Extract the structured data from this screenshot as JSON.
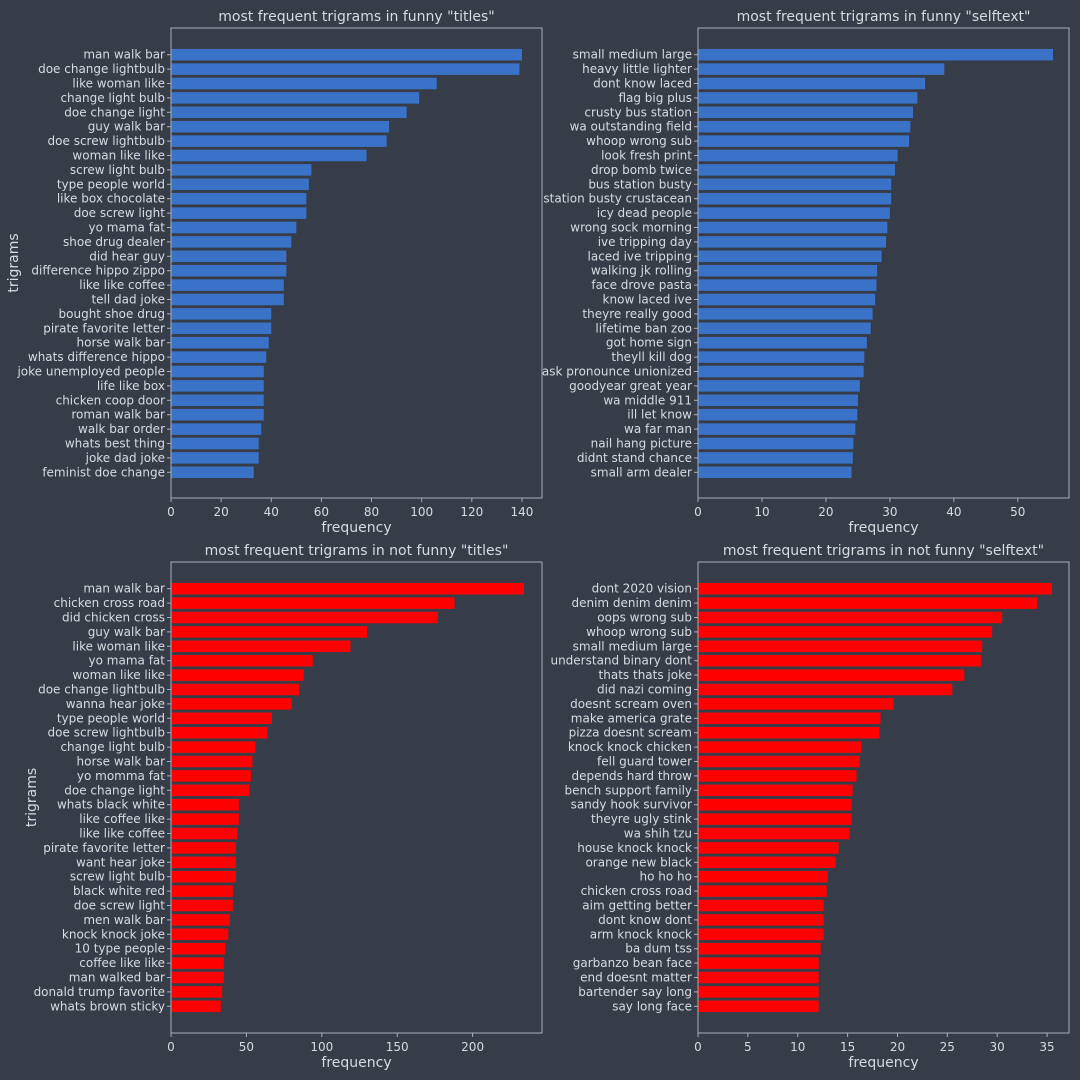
{
  "chart_data": [
    {
      "type": "bar",
      "orientation": "horizontal",
      "title": "most frequent trigrams in funny \"titles\"",
      "xlabel": "frequency",
      "ylabel": "trigrams",
      "xlim": [
        0,
        148
      ],
      "xticks": [
        0,
        20,
        40,
        60,
        80,
        100,
        120,
        140
      ],
      "color": "#3a72c8",
      "grid": false,
      "categories": [
        "man walk bar",
        "doe change lightbulb",
        "like woman like",
        "change light bulb",
        "doe change light",
        "guy walk bar",
        "doe screw lightbulb",
        "woman like like",
        "screw light bulb",
        "type people world",
        "like box chocolate",
        "doe screw light",
        "yo mama fat",
        "shoe drug dealer",
        "did hear guy",
        "difference hippo zippo",
        "like like coffee",
        "tell dad joke",
        "bought shoe drug",
        "pirate favorite letter",
        "horse walk bar",
        "whats difference hippo",
        "joke unemployed people",
        "life like box",
        "chicken coop door",
        "roman walk bar",
        "walk bar order",
        "whats best thing",
        "joke dad joke",
        "feminist doe change"
      ],
      "values": [
        140,
        139,
        106,
        99,
        94,
        87,
        86,
        78,
        56,
        55,
        54,
        54,
        50,
        48,
        46,
        46,
        45,
        45,
        40,
        40,
        39,
        38,
        37,
        37,
        37,
        37,
        36,
        35,
        35,
        33
      ]
    },
    {
      "type": "bar",
      "orientation": "horizontal",
      "title": "most frequent trigrams in funny \"selftext\"",
      "xlabel": "frequency",
      "ylabel": "",
      "xlim": [
        0,
        58
      ],
      "xticks": [
        0,
        10,
        20,
        30,
        40,
        50
      ],
      "color": "#3a72c8",
      "grid": false,
      "categories": [
        "small medium large",
        "heavy little lighter",
        "dont know laced",
        "flag big plus",
        "crusty bus station",
        "wa outstanding field",
        "whoop wrong sub",
        "look fresh print",
        "drop bomb twice",
        "bus station busty",
        "station busty crustacean",
        "icy dead people",
        "wrong sock morning",
        "ive tripping day",
        "laced ive tripping",
        "walking jk rolling",
        "face drove pasta",
        "know laced ive",
        "theyre really good",
        "lifetime ban zoo",
        "got home sign",
        "theyll kill dog",
        "ask pronounce unionized",
        "goodyear great year",
        "wa middle 911",
        "ill let know",
        "wa far man",
        "nail hang picture",
        "didnt stand chance",
        "small arm dealer"
      ],
      "values": [
        55.5,
        38.5,
        35.5,
        34.3,
        33.6,
        33.2,
        33,
        31.2,
        30.8,
        30.2,
        30.2,
        30,
        29.6,
        29.4,
        28.7,
        28,
        27.9,
        27.7,
        27.3,
        27,
        26.4,
        26,
        25.9,
        25.3,
        25,
        24.9,
        24.6,
        24.3,
        24.2,
        24
      ]
    },
    {
      "type": "bar",
      "orientation": "horizontal",
      "title": "most frequent trigrams in not funny \"titles\"",
      "xlabel": "frequency",
      "ylabel": "trigrams",
      "xlim": [
        0,
        246
      ],
      "xticks": [
        0,
        50,
        100,
        150,
        200
      ],
      "color": "#ff0000",
      "grid": false,
      "categories": [
        "man walk bar",
        "chicken cross road",
        "did chicken cross",
        "guy walk bar",
        "like woman like",
        "yo mama fat",
        "woman like like",
        "doe change lightbulb",
        "wanna hear joke",
        "type people world",
        "doe screw lightbulb",
        "change light bulb",
        "horse walk bar",
        "yo momma fat",
        "doe change light",
        "whats black white",
        "like coffee like",
        "like like coffee",
        "pirate favorite letter",
        "want hear joke",
        "screw light bulb",
        "black white red",
        "doe screw light",
        "men walk bar",
        "knock knock joke",
        "10 type people",
        "coffee like like",
        "man walked bar",
        "donald trump favorite",
        "whats brown sticky"
      ],
      "values": [
        234,
        188,
        177,
        130,
        119,
        94,
        88,
        85,
        80,
        67,
        64,
        56,
        54,
        53,
        52,
        45,
        45,
        44,
        43,
        43,
        43,
        41,
        41,
        39,
        38,
        36,
        35,
        35,
        34,
        33
      ]
    },
    {
      "type": "bar",
      "orientation": "horizontal",
      "title": "most frequent trigrams in not funny \"selftext\"",
      "xlabel": "frequency",
      "ylabel": "",
      "xlim": [
        0,
        37.2
      ],
      "xticks": [
        0,
        5,
        10,
        15,
        20,
        25,
        30,
        35
      ],
      "color": "#ff0000",
      "grid": false,
      "categories": [
        "dont 2020 vision",
        "denim denim denim",
        "oops wrong sub",
        "whoop wrong sub",
        "small medium large",
        "understand binary dont",
        "thats thats joke",
        "did nazi coming",
        "doesnt scream oven",
        "make america grate",
        "pizza doesnt scream",
        "knock knock chicken",
        "fell guard tower",
        "depends hard throw",
        "bench support family",
        "sandy hook survivor",
        "theyre ugly stink",
        "wa shih tzu",
        "house knock knock",
        "orange new black",
        "ho ho ho",
        "chicken cross road",
        "aim getting better",
        "dont know dont",
        "arm knock knock",
        "ba dum tss",
        "garbanzo bean face",
        "end doesnt matter",
        "bartender say long",
        "say long face"
      ],
      "values": [
        35.5,
        34,
        30.5,
        29.5,
        28.5,
        28.4,
        26.7,
        25.5,
        19.6,
        18.3,
        18.2,
        16.4,
        16.2,
        15.9,
        15.5,
        15.4,
        15.4,
        15.2,
        14.1,
        13.8,
        13,
        12.9,
        12.6,
        12.6,
        12.6,
        12.3,
        12.1,
        12.1,
        12.1,
        12.1
      ]
    }
  ]
}
